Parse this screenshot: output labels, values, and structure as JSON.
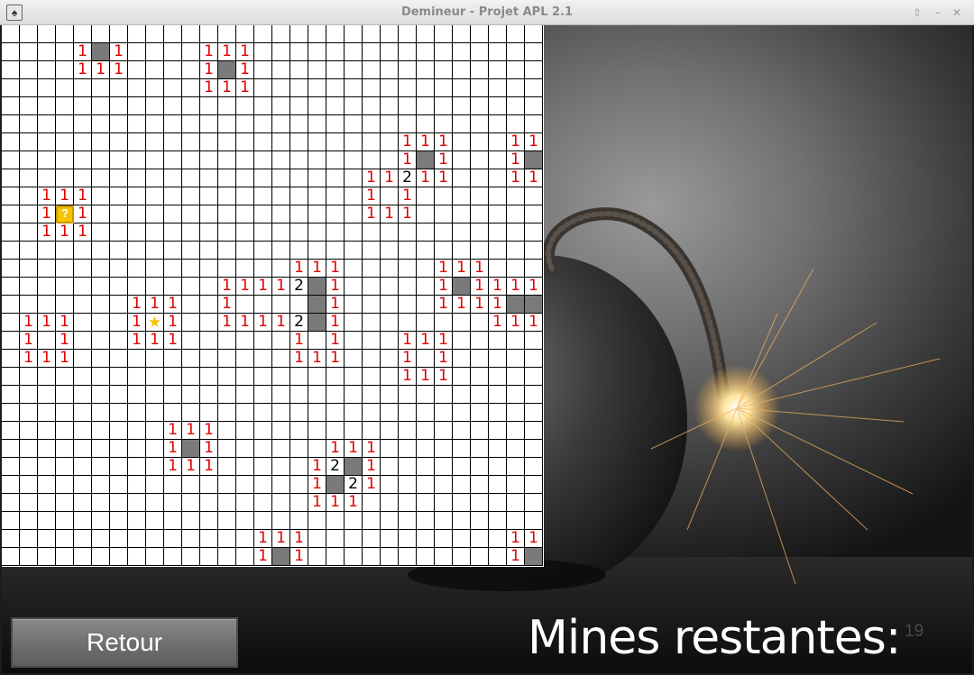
{
  "window": {
    "title": "Demineur - Projet APL 2.1"
  },
  "grid": {
    "revealed": [
      [
        5,
        1
      ],
      [
        12,
        2
      ],
      [
        23,
        7
      ],
      [
        29,
        7
      ],
      [
        21,
        8
      ],
      [
        3,
        10
      ],
      [
        8,
        15
      ],
      [
        17,
        14
      ],
      [
        25,
        14
      ],
      [
        13,
        14
      ],
      [
        14,
        14
      ],
      [
        15,
        14
      ],
      [
        16,
        14
      ],
      [
        17,
        15
      ],
      [
        28,
        15
      ],
      [
        29,
        15
      ],
      [
        17,
        16
      ],
      [
        2,
        16
      ],
      [
        23,
        17
      ],
      [
        10,
        23
      ],
      [
        19,
        24
      ],
      [
        18,
        25
      ],
      [
        15,
        29
      ],
      [
        29,
        29
      ]
    ],
    "numbers": [
      [
        4,
        1,
        "1"
      ],
      [
        6,
        1,
        "1"
      ],
      [
        4,
        2,
        "1"
      ],
      [
        5,
        2,
        "1"
      ],
      [
        6,
        2,
        "1"
      ],
      [
        11,
        1,
        "1"
      ],
      [
        12,
        1,
        "1"
      ],
      [
        13,
        1,
        "1"
      ],
      [
        11,
        2,
        "1"
      ],
      [
        13,
        2,
        "1"
      ],
      [
        11,
        3,
        "1"
      ],
      [
        12,
        3,
        "1"
      ],
      [
        13,
        3,
        "1"
      ],
      [
        22,
        6,
        "1"
      ],
      [
        23,
        6,
        "1"
      ],
      [
        24,
        6,
        "1"
      ],
      [
        22,
        7,
        "1"
      ],
      [
        24,
        7,
        "1"
      ],
      [
        20,
        8,
        "1"
      ],
      [
        21,
        8,
        "1"
      ],
      [
        22,
        8,
        "2"
      ],
      [
        23,
        8,
        "1"
      ],
      [
        24,
        8,
        "1"
      ],
      [
        20,
        9,
        "1"
      ],
      [
        22,
        9,
        "1"
      ],
      [
        20,
        10,
        "1"
      ],
      [
        21,
        10,
        "1"
      ],
      [
        22,
        10,
        "1"
      ],
      [
        28,
        6,
        "1"
      ],
      [
        29,
        6,
        "1"
      ],
      [
        28,
        7,
        "1"
      ],
      [
        28,
        8,
        "1"
      ],
      [
        29,
        8,
        "1"
      ],
      [
        2,
        9,
        "1"
      ],
      [
        3,
        9,
        "1"
      ],
      [
        4,
        9,
        "1"
      ],
      [
        2,
        10,
        "1"
      ],
      [
        4,
        10,
        "1"
      ],
      [
        2,
        11,
        "1"
      ],
      [
        3,
        11,
        "1"
      ],
      [
        4,
        11,
        "1"
      ],
      [
        16,
        13,
        "1"
      ],
      [
        17,
        13,
        "1"
      ],
      [
        18,
        13,
        "1"
      ],
      [
        12,
        14,
        "1"
      ],
      [
        13,
        14,
        "1"
      ],
      [
        14,
        14,
        "1"
      ],
      [
        15,
        14,
        "1"
      ],
      [
        16,
        14,
        "2"
      ],
      [
        18,
        14,
        "1"
      ],
      [
        12,
        15,
        "1"
      ],
      [
        18,
        15,
        "1"
      ],
      [
        12,
        16,
        "1"
      ],
      [
        13,
        16,
        "1"
      ],
      [
        14,
        16,
        "1"
      ],
      [
        15,
        16,
        "1"
      ],
      [
        16,
        16,
        "2"
      ],
      [
        18,
        16,
        "1"
      ],
      [
        16,
        17,
        "1"
      ],
      [
        18,
        17,
        "1"
      ],
      [
        16,
        18,
        "1"
      ],
      [
        17,
        18,
        "1"
      ],
      [
        18,
        18,
        "1"
      ],
      [
        24,
        13,
        "1"
      ],
      [
        25,
        13,
        "1"
      ],
      [
        26,
        13,
        "1"
      ],
      [
        24,
        14,
        "1"
      ],
      [
        26,
        14,
        "1"
      ],
      [
        27,
        14,
        "1"
      ],
      [
        28,
        14,
        "1"
      ],
      [
        29,
        14,
        "1"
      ],
      [
        24,
        15,
        "1"
      ],
      [
        25,
        15,
        "1"
      ],
      [
        26,
        15,
        "1"
      ],
      [
        27,
        15,
        "1"
      ],
      [
        27,
        16,
        "1"
      ],
      [
        28,
        16,
        "1"
      ],
      [
        29,
        16,
        "1"
      ],
      [
        7,
        15,
        "1"
      ],
      [
        8,
        15,
        "1"
      ],
      [
        9,
        15,
        "1"
      ],
      [
        7,
        16,
        "1"
      ],
      [
        9,
        16,
        "1"
      ],
      [
        7,
        17,
        "1"
      ],
      [
        8,
        17,
        "1"
      ],
      [
        9,
        17,
        "1"
      ],
      [
        1,
        16,
        "1"
      ],
      [
        2,
        16,
        "1"
      ],
      [
        3,
        16,
        "1"
      ],
      [
        1,
        17,
        "1"
      ],
      [
        3,
        17,
        "1"
      ],
      [
        1,
        18,
        "1"
      ],
      [
        2,
        18,
        "1"
      ],
      [
        3,
        18,
        "1"
      ],
      [
        22,
        17,
        "1"
      ],
      [
        23,
        17,
        "1"
      ],
      [
        24,
        17,
        "1"
      ],
      [
        22,
        18,
        "1"
      ],
      [
        24,
        18,
        "1"
      ],
      [
        22,
        19,
        "1"
      ],
      [
        23,
        19,
        "1"
      ],
      [
        24,
        19,
        "1"
      ],
      [
        9,
        22,
        "1"
      ],
      [
        10,
        22,
        "1"
      ],
      [
        11,
        22,
        "1"
      ],
      [
        9,
        23,
        "1"
      ],
      [
        11,
        23,
        "1"
      ],
      [
        9,
        24,
        "1"
      ],
      [
        10,
        24,
        "1"
      ],
      [
        11,
        24,
        "1"
      ],
      [
        18,
        23,
        "1"
      ],
      [
        19,
        23,
        "1"
      ],
      [
        20,
        23,
        "1"
      ],
      [
        17,
        24,
        "1"
      ],
      [
        18,
        24,
        "2"
      ],
      [
        20,
        24,
        "1"
      ],
      [
        17,
        25,
        "1"
      ],
      [
        19,
        25,
        "2"
      ],
      [
        20,
        25,
        "1"
      ],
      [
        17,
        26,
        "1"
      ],
      [
        18,
        26,
        "1"
      ],
      [
        19,
        26,
        "1"
      ],
      [
        14,
        28,
        "1"
      ],
      [
        15,
        28,
        "1"
      ],
      [
        16,
        28,
        "1"
      ],
      [
        14,
        29,
        "1"
      ],
      [
        16,
        29,
        "1"
      ],
      [
        28,
        28,
        "1"
      ],
      [
        29,
        28,
        "1"
      ],
      [
        28,
        29,
        "1"
      ]
    ],
    "flags": [
      [
        3,
        10,
        "?"
      ]
    ],
    "stars": [
      [
        8,
        16,
        "★"
      ]
    ]
  },
  "controls": {
    "back_label": "Retour"
  },
  "status": {
    "mines_label": "Mines restantes:",
    "mines_count": "19"
  }
}
